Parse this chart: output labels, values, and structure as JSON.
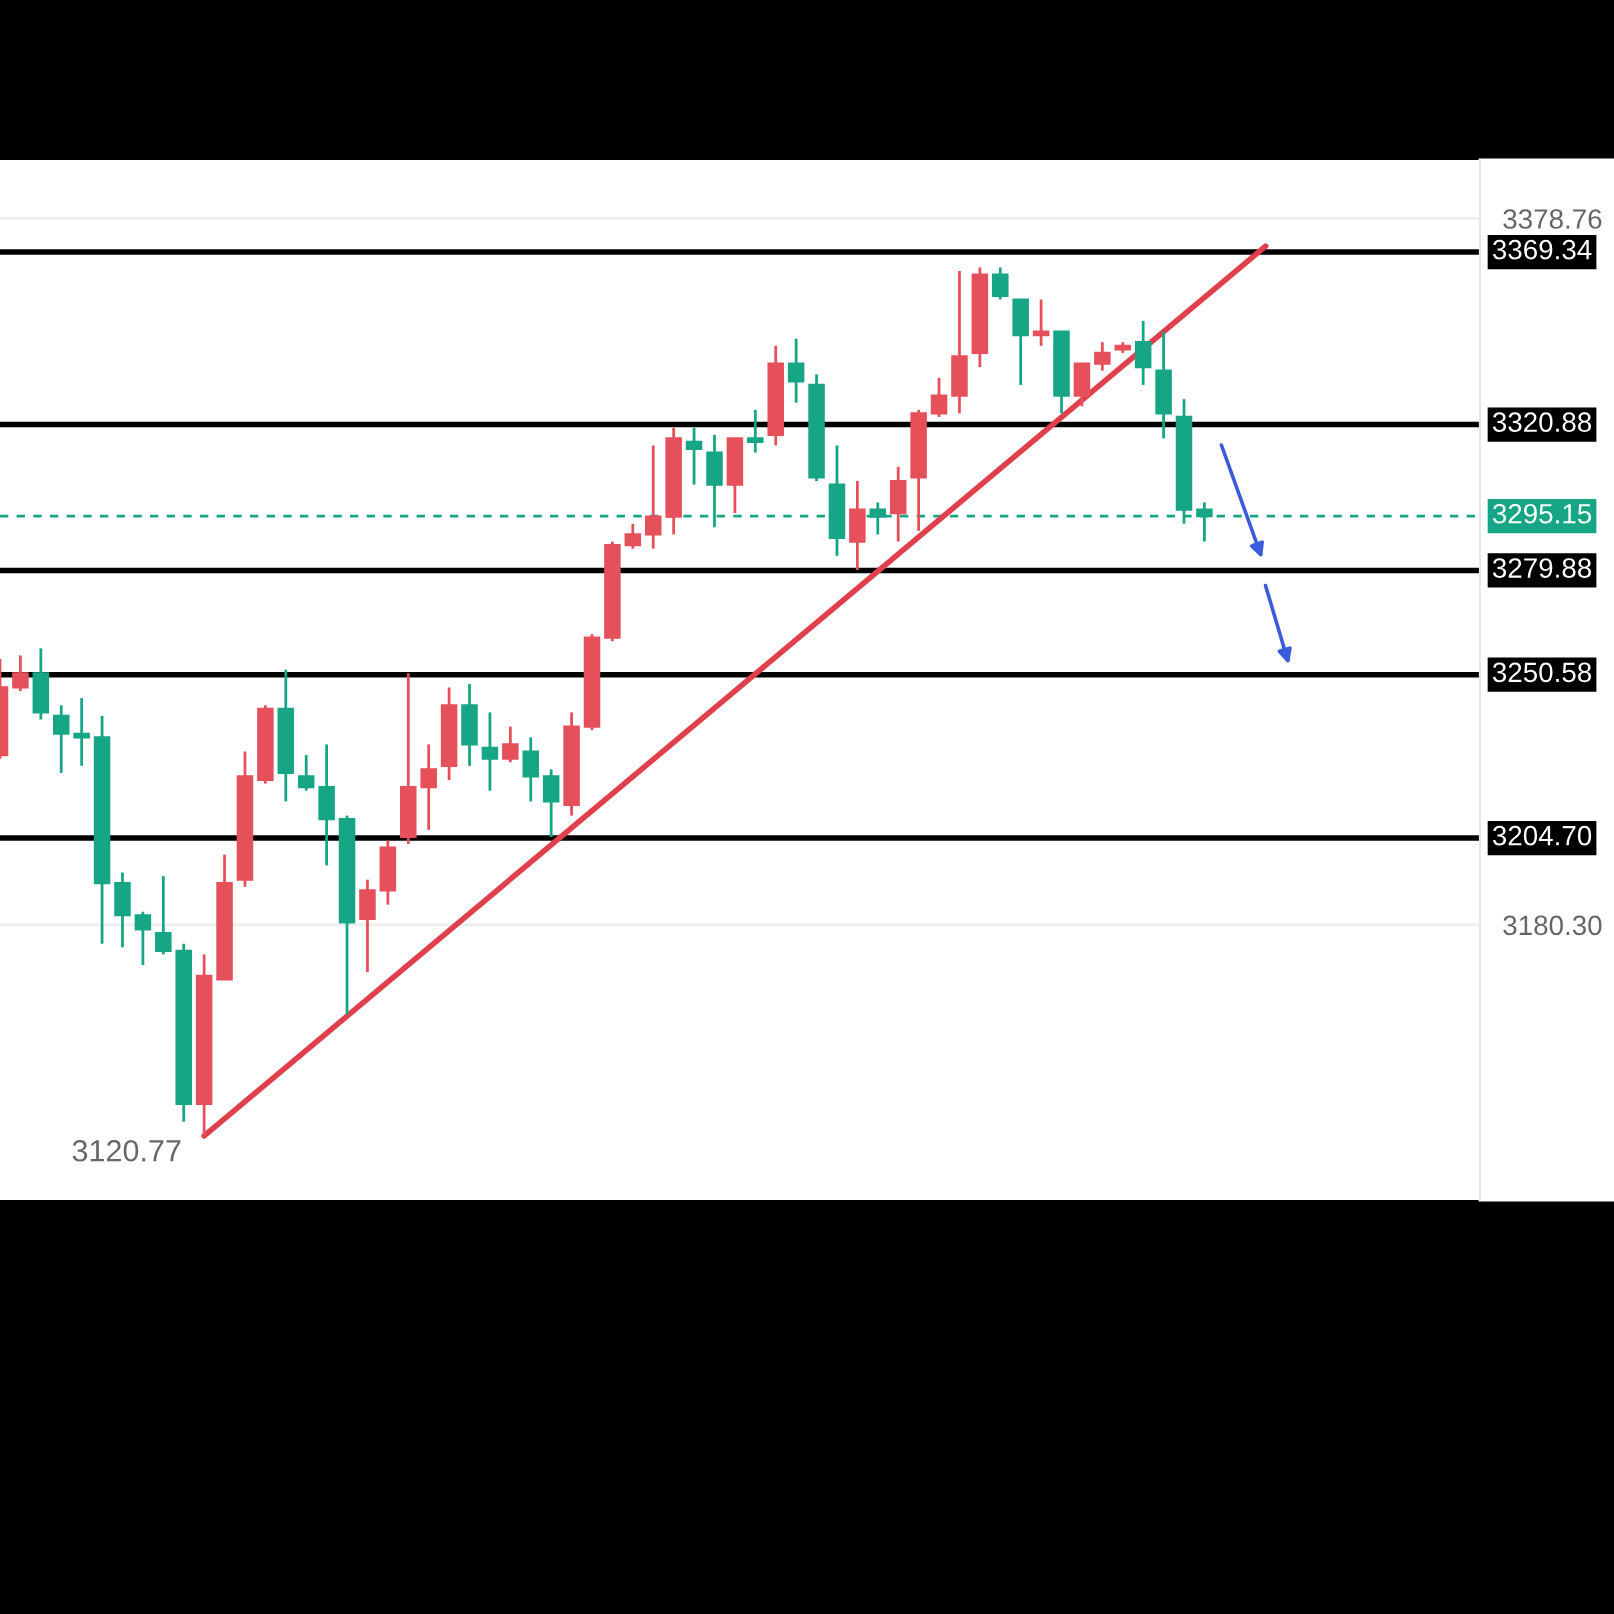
{
  "chart_data": {
    "type": "candlestick",
    "categories": [
      null,
      null,
      null,
      null,
      null,
      null,
      null,
      null,
      null,
      null,
      null,
      null,
      null,
      null,
      null,
      null,
      null,
      null,
      null,
      null,
      null,
      null,
      null,
      null,
      null,
      null,
      null,
      null,
      null,
      null,
      null,
      null,
      null,
      null,
      null,
      null,
      null,
      null,
      null,
      null,
      null,
      null,
      null,
      null,
      null,
      null,
      null,
      null,
      null,
      null,
      null,
      null,
      null,
      null,
      null,
      null,
      null,
      null,
      null,
      null,
      null,
      null,
      null,
      null,
      null,
      null,
      null,
      null,
      null,
      null,
      null,
      null,
      null
    ],
    "ohlc": [
      [
        3228,
        3255,
        3227,
        3247
      ],
      [
        3247,
        3256,
        3246,
        3251
      ],
      [
        3251,
        3258,
        3238,
        3240
      ],
      [
        3239,
        3242,
        3223,
        3234
      ],
      [
        3234,
        3244,
        3225,
        3233
      ],
      [
        3233,
        3239,
        3175,
        3192
      ],
      [
        3192,
        3195,
        3174,
        3183
      ],
      [
        3183,
        3184,
        3169,
        3179
      ],
      [
        3178,
        3194,
        3172,
        3173
      ],
      [
        3173,
        3175,
        3125,
        3130
      ],
      [
        3130,
        3172,
        3120.77,
        3166
      ],
      [
        3165,
        3200,
        3165,
        3192
      ],
      [
        3193,
        3229,
        3191,
        3222
      ],
      [
        3221,
        3242,
        3220,
        3241
      ],
      [
        3241,
        3252,
        3215,
        3223
      ],
      [
        3222,
        3228,
        3218,
        3219
      ],
      [
        3219,
        3231,
        3197,
        3210
      ],
      [
        3210,
        3211,
        3155,
        3181
      ],
      [
        3182,
        3193,
        3167,
        3190
      ],
      [
        3190,
        3204,
        3186,
        3202
      ],
      [
        3205,
        3251,
        3203,
        3219
      ],
      [
        3219,
        3231,
        3207,
        3224
      ],
      [
        3225,
        3247,
        3221,
        3242
      ],
      [
        3242,
        3248,
        3225,
        3231
      ],
      [
        3230,
        3240,
        3218,
        3227
      ],
      [
        3227,
        3236,
        3226,
        3231
      ],
      [
        3229,
        3233,
        3215,
        3222
      ],
      [
        3222,
        3224,
        3205,
        3215
      ],
      [
        3214,
        3240,
        3211,
        3236
      ],
      [
        3236,
        3262,
        3235,
        3261
      ],
      [
        3261,
        3288,
        3260,
        3287
      ],
      [
        3287,
        3293,
        3286,
        3290
      ],
      [
        3290,
        3315,
        3286,
        3295
      ],
      [
        3295,
        3320,
        3290,
        3317
      ],
      [
        3316,
        3320,
        3304,
        3314
      ],
      [
        3313,
        3318,
        3292,
        3304
      ],
      [
        3304,
        3317,
        3296,
        3317
      ],
      [
        3317,
        3325,
        3313,
        3316
      ],
      [
        3318,
        3343,
        3315,
        3338
      ],
      [
        3338,
        3345,
        3327,
        3333
      ],
      [
        3332,
        3335,
        3305,
        3306
      ],
      [
        3304,
        3315,
        3284,
        3289
      ],
      [
        3288,
        3305,
        3280,
        3297
      ],
      [
        3297,
        3299,
        3290,
        3295
      ],
      [
        3296,
        3309,
        3288,
        3305
      ],
      [
        3306,
        3325,
        3291,
        3324
      ],
      [
        3324,
        3334,
        3323,
        3329
      ],
      [
        3329,
        3364,
        3324,
        3340
      ],
      [
        3341,
        3365,
        3337,
        3363
      ],
      [
        3363,
        3365,
        3356,
        3357
      ],
      [
        3356,
        3356,
        3332,
        3346
      ],
      [
        3346,
        3356,
        3343,
        3347
      ],
      [
        3347,
        3347,
        3324,
        3329
      ],
      [
        3329,
        3338,
        3326,
        3338
      ],
      [
        3338,
        3344,
        3336,
        3341
      ],
      [
        3342,
        3344,
        3341,
        3343
      ],
      [
        3344,
        3350,
        3332,
        3337
      ],
      [
        3336,
        3347,
        3317,
        3324
      ],
      [
        3323,
        3328,
        3293,
        3297
      ],
      [
        3297,
        3299,
        3288,
        3295.15
      ],
      null,
      null,
      null,
      null,
      null,
      null,
      null,
      null,
      null,
      null,
      null,
      null,
      null
    ],
    "colors": [
      "#e5505a",
      "#e5505a",
      "#16a585",
      "#16a585",
      "#16a585",
      "#16a585",
      "#16a585",
      "#16a585",
      "#16a585",
      "#16a585",
      "#e5505a",
      "#e5505a",
      "#e5505a",
      "#e5505a",
      "#16a585",
      "#16a585",
      "#16a585",
      "#16a585",
      "#e5505a",
      "#e5505a",
      "#e5505a",
      "#e5505a",
      "#e5505a",
      "#16a585",
      "#16a585",
      "#e5505a",
      "#16a585",
      "#16a585",
      "#e5505a",
      "#e5505a",
      "#e5505a",
      "#e5505a",
      "#e5505a",
      "#e5505a",
      "#16a585",
      "#16a585",
      "#e5505a",
      "#16a585",
      "#e5505a",
      "#16a585",
      "#16a585",
      "#16a585",
      "#e5505a",
      "#16a585",
      "#e5505a",
      "#e5505a",
      "#e5505a",
      "#e5505a",
      "#e5505a",
      "#16a585",
      "#16a585",
      "#e5505a",
      "#16a585",
      "#e5505a",
      "#e5505a",
      "#e5505a",
      "#16a585",
      "#16a585",
      "#16a585",
      "#16a585",
      null,
      null,
      null,
      null,
      null,
      null,
      null,
      null,
      null,
      null,
      null,
      null,
      null
    ],
    "series": [
      {
        "type": "line",
        "color": "#e0404c",
        "values": [
          null,
          null,
          null,
          null,
          null,
          null,
          null,
          null,
          null,
          null,
          3121,
          null,
          null,
          null,
          null,
          null,
          null,
          null,
          null,
          null,
          null,
          null,
          null,
          null,
          null,
          null,
          null,
          null,
          null,
          null,
          null,
          null,
          null,
          null,
          null,
          null,
          null,
          null,
          null,
          null,
          null,
          null,
          null,
          null,
          null,
          null,
          null,
          null,
          null,
          null,
          null,
          null,
          null,
          null,
          null,
          null,
          null,
          null,
          null,
          null,
          null,
          null,
          3371,
          null,
          null,
          null,
          null,
          null,
          null,
          null,
          null,
          null,
          null
        ]
      }
    ],
    "ylim": [
      3103,
      3395.2
    ],
    "yticks": [
      {
        "value": 3180.3,
        "label": "3180.30"
      },
      {
        "value": 3378.76,
        "label": "3378.76"
      }
    ],
    "tick_labels": "y",
    "grid": "y",
    "ref_lines": [
      {
        "axis": "y",
        "value": 3369.34,
        "label": "3369.34",
        "color": "#000000"
      },
      {
        "axis": "y",
        "value": 3320.88,
        "label": "3320.88",
        "color": "#000000"
      },
      {
        "axis": "y",
        "value": 3295.15,
        "label": "3295.15",
        "color": "#16a585",
        "line_style": "dashed"
      },
      {
        "axis": "y",
        "value": 3279.88,
        "label": "3279.88",
        "color": "#000000"
      },
      {
        "axis": "y",
        "value": 3250.58,
        "label": "3250.58",
        "color": "#000000"
      },
      {
        "axis": "y",
        "value": 3204.7,
        "label": "3204.70",
        "color": "#000000"
      }
    ],
    "annotations": [
      "3120.77"
    ]
  }
}
